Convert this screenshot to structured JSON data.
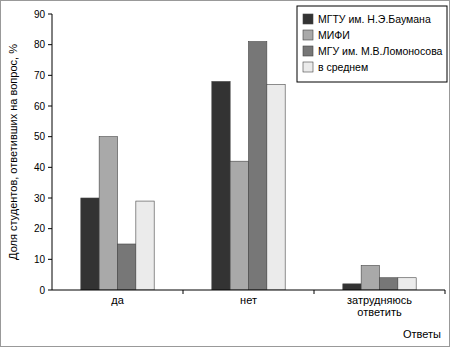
{
  "chart_data": {
    "type": "bar",
    "y_label": "Доля студентов, ответивших на вопрос, %",
    "x_label": "Ответы",
    "categories": [
      "да",
      "нет",
      "затрудняюсь ответить"
    ],
    "series": [
      {
        "name": "МГТУ им. Н.Э.Баумана",
        "color": "#333333",
        "values": [
          30,
          68,
          2
        ]
      },
      {
        "name": "МИФИ",
        "color": "#a9a9a9",
        "values": [
          50,
          42,
          8
        ]
      },
      {
        "name": "МГУ им. М.В.Ломоносова",
        "color": "#777777",
        "values": [
          15,
          81,
          4
        ]
      },
      {
        "name": "в среднем",
        "color": "#ebebeb",
        "values": [
          29,
          67,
          4
        ]
      }
    ],
    "ylim": [
      0,
      90
    ],
    "yticks": [
      0,
      10,
      20,
      30,
      40,
      50,
      60,
      70,
      80,
      90
    ],
    "grid": false,
    "legend": "top-right"
  }
}
